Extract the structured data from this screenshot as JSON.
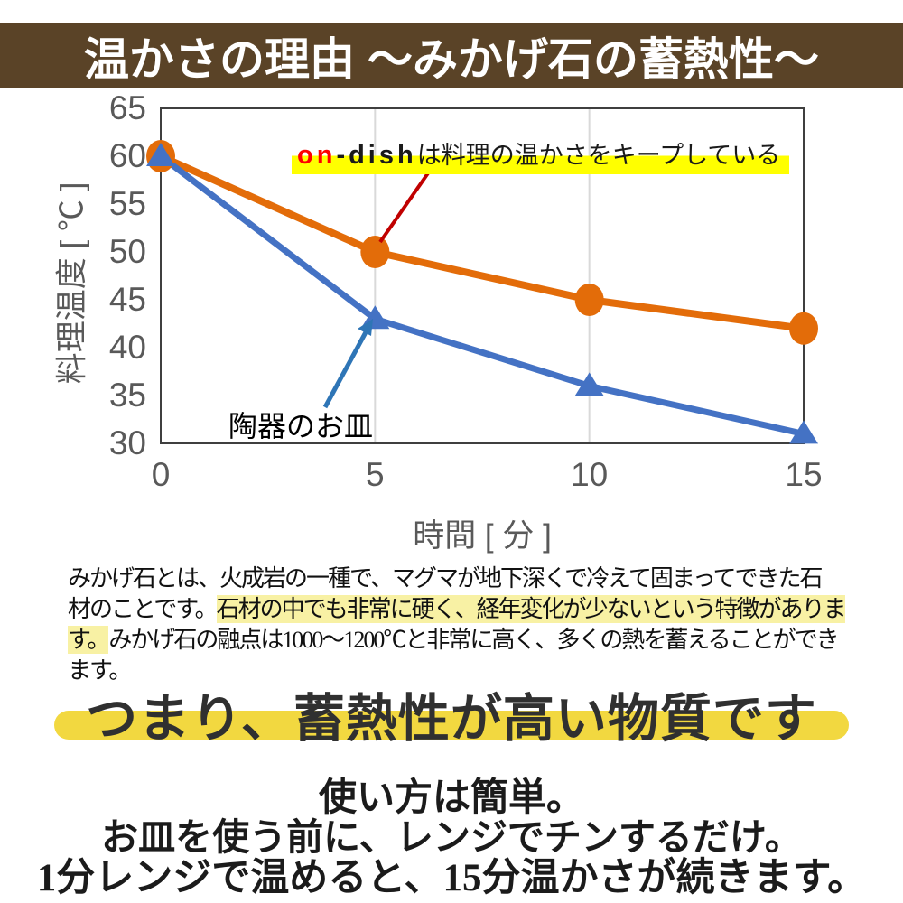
{
  "header": {
    "title": "温かさの理由 ～みかげ石の蓄熱性～",
    "bg_color": "#5A4327",
    "text_color": "#FFFFFF"
  },
  "chart_data": {
    "type": "line",
    "x": [
      0,
      5,
      10,
      15
    ],
    "xlim": [
      0,
      15
    ],
    "ylim": [
      30,
      65
    ],
    "xticks": [
      0,
      5,
      10,
      15
    ],
    "yticks": [
      65,
      60,
      55,
      50,
      45,
      40,
      35,
      30
    ],
    "xlabel": "時間 [ 分 ]",
    "ylabel": "料理温度 [ ℃ ]",
    "grid": "vertical gridlines at x=5 and x=10 only, light gray",
    "legend": "none (arrow annotations inside plot)",
    "plot_border_color": "#3F3F3F",
    "gridline_color": "#D9D9D9",
    "tick_color": "#595959",
    "series": [
      {
        "name": "on-dish",
        "values": [
          60,
          50,
          45,
          42
        ],
        "color": "#E36C09",
        "marker": "circle"
      },
      {
        "name": "陶器のお皿",
        "values": [
          60,
          43,
          36,
          31
        ],
        "color": "#4472C4",
        "marker": "triangle"
      }
    ],
    "annotation": {
      "brand_red": "on",
      "brand_rest": "-dish",
      "suffix": "は料理の温かさをキープしている",
      "highlight_color": "#FFFF00",
      "brand_red_color": "#FF0000",
      "brand_rest_color": "#1A1A1A",
      "arrow_color": "#C00000"
    },
    "series2_label": "陶器のお皿",
    "series2_arrow_color": "#2E75B6"
  },
  "paragraph": {
    "highlight_color": "#F8F1A4",
    "lines": [
      {
        "pre": "みかげ石とは、火成岩の一種で、マグマが地下深くで冷えて固まってできた石",
        "hl": "",
        "post": ""
      },
      {
        "pre": "材のことです。",
        "hl": "石材の中でも非常に硬く、経年変化が少ないという特徴がありま",
        "post": ""
      },
      {
        "pre": "",
        "hl": "す。",
        "post": "みかげ石の融点は1000～1200℃と非常に高く、多くの熱を蓄えることができ"
      },
      {
        "pre": "ます。",
        "hl": "",
        "post": ""
      }
    ]
  },
  "headline": {
    "text": "つまり、蓄熱性が高い物質です",
    "band_color": "#F2D840"
  },
  "footer_lines": [
    "使い方は簡単。",
    "お皿を使う前に、レンジでチンするだけ。",
    "1分レンジで温めると、15分温かさが続きます。"
  ]
}
